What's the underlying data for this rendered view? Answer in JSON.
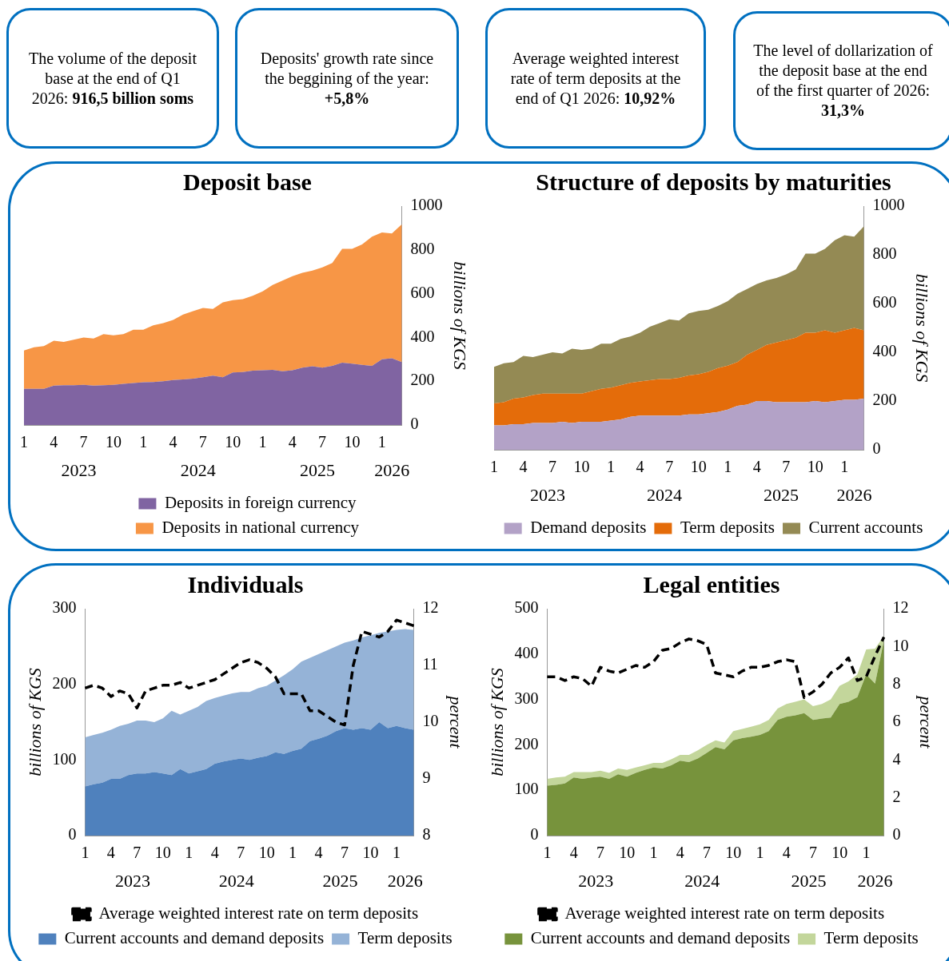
{
  "chart_data": [
    {
      "type": "other",
      "annotations": [
        "The volume of the deposit base at the end of Q1 2026: ",
        "916,5 billion soms"
      ]
    },
    {
      "type": "other",
      "annotations": [
        "Deposits' growth rate since the beggining of the year: ",
        "+5,8%"
      ]
    },
    {
      "type": "other",
      "annotations": [
        "Average weighted interest rate of term deposits at the end of Q1 2026: ",
        "10,92%"
      ]
    },
    {
      "type": "other",
      "annotations": [
        "The level of dollarization of the deposit base at the end of the first quarter of 2026: ",
        "31,3%"
      ]
    },
    {
      "type": "area",
      "title": "Deposit base",
      "ylabel": "billions of KGS",
      "stacked": true,
      "legend": "bottom",
      "categories": [
        "1",
        null,
        null,
        "4",
        null,
        null,
        "7",
        null,
        null,
        "10",
        null,
        null,
        "1",
        null,
        null,
        "4",
        null,
        null,
        "7",
        null,
        null,
        "10",
        null,
        null,
        "1",
        null,
        null,
        "4",
        null,
        null,
        "7",
        null,
        null,
        "10",
        null,
        null,
        "1",
        null,
        null
      ],
      "annotations": [
        "2023",
        "2024",
        "2025",
        "2026"
      ],
      "ylim": [
        0,
        1000
      ],
      "yticks": [
        0,
        200,
        400,
        600,
        800,
        1000
      ],
      "series": [
        {
          "name": "Deposits in foreign currency",
          "color": "#8064a2",
          "values": [
            165,
            165,
            165,
            180,
            182,
            182,
            183,
            180,
            182,
            183,
            188,
            192,
            195,
            196,
            200,
            205,
            208,
            212,
            218,
            225,
            218,
            240,
            242,
            248,
            250,
            252,
            245,
            250,
            262,
            268,
            262,
            270,
            285,
            280,
            275,
            270,
            300,
            305,
            287
          ]
        },
        {
          "name": "Deposits in national currency",
          "color": "#f79646",
          "values": [
            175,
            190,
            195,
            205,
            198,
            208,
            217,
            215,
            233,
            227,
            227,
            243,
            240,
            259,
            265,
            275,
            297,
            308,
            317,
            305,
            342,
            330,
            333,
            342,
            360,
            388,
            415,
            430,
            433,
            437,
            458,
            470,
            520,
            525,
            550,
            590,
            580,
            570,
            630
          ]
        }
      ]
    },
    {
      "type": "area",
      "title": "Structure of deposits by maturities",
      "ylabel": "billions of KGS",
      "stacked": true,
      "legend": "bottom",
      "categories": [
        "1",
        null,
        null,
        "4",
        null,
        null,
        "7",
        null,
        null,
        "10",
        null,
        null,
        "1",
        null,
        null,
        "4",
        null,
        null,
        "7",
        null,
        null,
        "10",
        null,
        null,
        "1",
        null,
        null,
        "4",
        null,
        null,
        "7",
        null,
        null,
        "10",
        null,
        null,
        "1",
        null,
        null
      ],
      "annotations": [
        "2023",
        "2024",
        "2025",
        "2026"
      ],
      "ylim": [
        0,
        1000
      ],
      "yticks": [
        0,
        200,
        400,
        600,
        800,
        1000
      ],
      "series": [
        {
          "name": "Demand deposits",
          "color": "#b3a2c7",
          "values": [
            100,
            100,
            105,
            105,
            110,
            110,
            110,
            115,
            110,
            115,
            115,
            115,
            120,
            125,
            135,
            140,
            140,
            140,
            140,
            140,
            145,
            145,
            150,
            155,
            165,
            180,
            185,
            200,
            200,
            195,
            195,
            195,
            195,
            200,
            195,
            200,
            205,
            205,
            210
          ]
        },
        {
          "name": "Term deposits",
          "color": "#e46c0a",
          "values": [
            90,
            95,
            105,
            110,
            115,
            120,
            120,
            115,
            120,
            115,
            125,
            135,
            135,
            140,
            140,
            140,
            145,
            150,
            150,
            155,
            160,
            165,
            170,
            180,
            180,
            180,
            205,
            210,
            230,
            245,
            255,
            265,
            285,
            280,
            295,
            280,
            285,
            295,
            280
          ]
        },
        {
          "name": "Current accounts",
          "color": "#948a54",
          "values": [
            150,
            160,
            150,
            170,
            155,
            160,
            170,
            165,
            185,
            180,
            175,
            185,
            180,
            190,
            190,
            200,
            220,
            230,
            245,
            235,
            255,
            260,
            255,
            255,
            265,
            280,
            270,
            270,
            265,
            265,
            270,
            280,
            325,
            325,
            335,
            380,
            390,
            375,
            427
          ]
        }
      ]
    },
    {
      "type": "area",
      "title": "Individuals",
      "ylabel": "billions of KGS",
      "y2label": "percent",
      "stacked": true,
      "legend": "bottom",
      "categories": [
        "1",
        null,
        null,
        "4",
        null,
        null,
        "7",
        null,
        null,
        "10",
        null,
        null,
        "1",
        null,
        null,
        "4",
        null,
        null,
        "7",
        null,
        null,
        "10",
        null,
        null,
        "1",
        null,
        null,
        "4",
        null,
        null,
        "7",
        null,
        null,
        "10",
        null,
        null,
        "1",
        null,
        null
      ],
      "annotations": [
        "2023",
        "2024",
        "2025",
        "2026"
      ],
      "ylim": [
        0,
        300
      ],
      "yticks": [
        0,
        100,
        200,
        300
      ],
      "y2lim": [
        8,
        12
      ],
      "y2ticks": [
        8,
        9,
        10,
        11,
        12
      ],
      "series": [
        {
          "name": "Current accounts and demand deposits",
          "color": "#4f81bd",
          "values": [
            65,
            68,
            70,
            75,
            75,
            80,
            82,
            82,
            84,
            82,
            80,
            88,
            82,
            85,
            88,
            95,
            98,
            100,
            102,
            100,
            103,
            105,
            110,
            108,
            112,
            115,
            125,
            128,
            132,
            138,
            142,
            140,
            142,
            140,
            150,
            142,
            145,
            142,
            140
          ]
        },
        {
          "name": "Term deposits",
          "color": "#95b3d7",
          "values": [
            65,
            65,
            66,
            65,
            70,
            68,
            70,
            70,
            66,
            73,
            85,
            72,
            83,
            85,
            90,
            87,
            87,
            88,
            88,
            90,
            92,
            93,
            95,
            104,
            108,
            115,
            110,
            112,
            113,
            112,
            113,
            118,
            120,
            125,
            118,
            128,
            127,
            131,
            132
          ]
        },
        {
          "name": "Average weighted interest rate on term deposits",
          "type": "line",
          "axis": "y2",
          "line_style": "dashed",
          "color": "#000000",
          "values": [
            10.6,
            10.65,
            10.6,
            10.45,
            10.55,
            10.5,
            10.25,
            10.55,
            10.6,
            10.65,
            10.65,
            10.7,
            10.6,
            10.65,
            10.7,
            10.75,
            10.85,
            10.95,
            11.05,
            11.1,
            11.05,
            10.95,
            10.8,
            10.5,
            10.5,
            10.5,
            10.2,
            10.2,
            10.1,
            10.0,
            9.95,
            11.0,
            11.6,
            11.55,
            11.5,
            11.6,
            11.8,
            11.75,
            11.7
          ]
        }
      ]
    },
    {
      "type": "area",
      "title": "Legal entities",
      "ylabel": "billions of KGS",
      "y2label": "percent",
      "stacked": true,
      "legend": "bottom",
      "categories": [
        "1",
        null,
        null,
        "4",
        null,
        null,
        "7",
        null,
        null,
        "10",
        null,
        null,
        "1",
        null,
        null,
        "4",
        null,
        null,
        "7",
        null,
        null,
        "10",
        null,
        null,
        "1",
        null,
        null,
        "4",
        null,
        null,
        "7",
        null,
        null,
        "10",
        null,
        null,
        "1",
        null,
        null
      ],
      "annotations": [
        "2023",
        "2024",
        "2025",
        "2026"
      ],
      "ylim": [
        0,
        500
      ],
      "yticks": [
        0,
        100,
        200,
        300,
        400,
        500
      ],
      "y2lim": [
        0,
        12
      ],
      "y2ticks": [
        0,
        2,
        4,
        6,
        8,
        10,
        12
      ],
      "series": [
        {
          "name": "Current accounts and demand deposits",
          "color": "#77933c",
          "values": [
            110,
            112,
            115,
            128,
            125,
            128,
            130,
            125,
            135,
            130,
            138,
            145,
            150,
            148,
            155,
            165,
            162,
            170,
            182,
            195,
            190,
            210,
            215,
            218,
            222,
            230,
            255,
            262,
            265,
            270,
            255,
            258,
            260,
            290,
            295,
            305,
            355,
            335,
            430
          ]
        },
        {
          "name": "Term deposits",
          "color": "#c3d69b",
          "values": [
            15,
            16,
            15,
            12,
            15,
            12,
            13,
            13,
            13,
            15,
            12,
            10,
            10,
            12,
            13,
            13,
            16,
            18,
            18,
            15,
            15,
            20,
            20,
            22,
            23,
            25,
            25,
            28,
            30,
            30,
            30,
            32,
            40,
            40,
            45,
            50,
            55,
            77,
            10
          ]
        },
        {
          "name": "Average weighted interest rate on term deposits",
          "type": "line",
          "axis": "y2",
          "line_style": "dashed",
          "color": "#000000",
          "values": [
            8.4,
            8.4,
            8.2,
            8.4,
            8.3,
            7.9,
            8.9,
            8.7,
            8.6,
            8.8,
            9.0,
            8.9,
            9.2,
            9.8,
            9.9,
            10.2,
            10.4,
            10.3,
            10.1,
            8.6,
            8.5,
            8.4,
            8.7,
            8.9,
            8.9,
            9.0,
            9.2,
            9.3,
            9.2,
            7.3,
            7.6,
            8.0,
            8.6,
            8.9,
            9.4,
            8.2,
            8.4,
            9.5,
            10.5
          ]
        }
      ]
    }
  ]
}
